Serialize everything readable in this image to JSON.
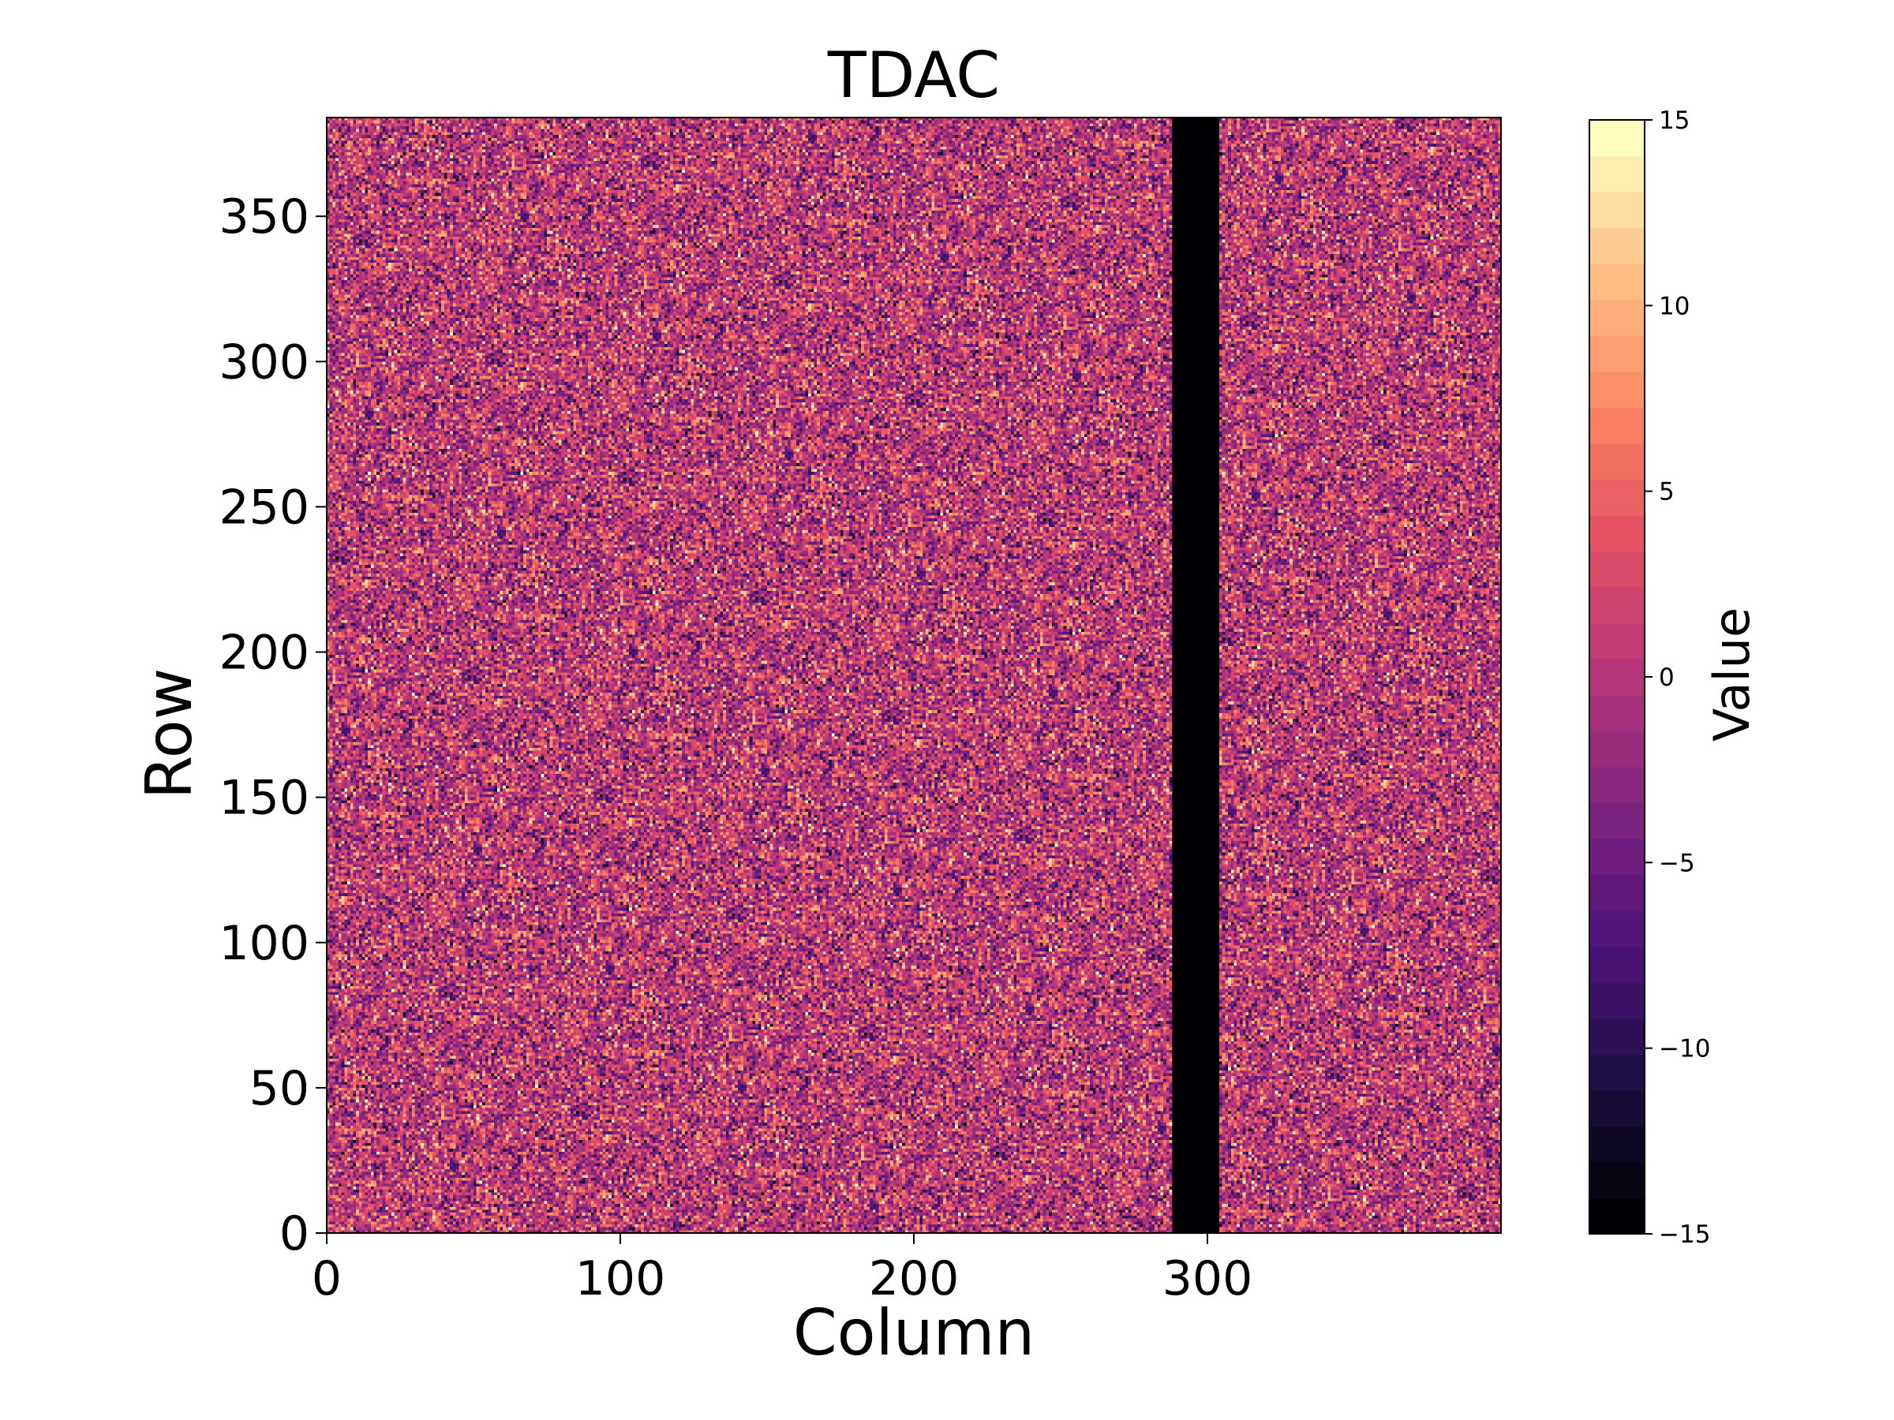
{
  "chart_data": {
    "type": "heatmap",
    "title": "TDAC",
    "xlabel": "Column",
    "ylabel": "Row",
    "xlim": [
      0,
      400
    ],
    "ylim": [
      0,
      384
    ],
    "x_ticks": [
      0,
      100,
      200,
      300
    ],
    "y_ticks": [
      0,
      50,
      100,
      150,
      200,
      250,
      300,
      350
    ],
    "colormap": "magma",
    "colorbar": {
      "label": "Value",
      "vmin": -15,
      "vmax": 15,
      "levels": 31,
      "ticks": [
        -15,
        -10,
        -5,
        0,
        5,
        10,
        15
      ],
      "tick_labels": [
        "−15",
        "−10",
        "−5",
        "0",
        "5",
        "10",
        "15"
      ]
    },
    "distribution": {
      "mean": 0.5,
      "std": 5.2,
      "clip": [
        -15,
        15
      ]
    },
    "masked_columns": {
      "range": [
        288,
        303
      ],
      "value": -15
    },
    "grid": false
  }
}
